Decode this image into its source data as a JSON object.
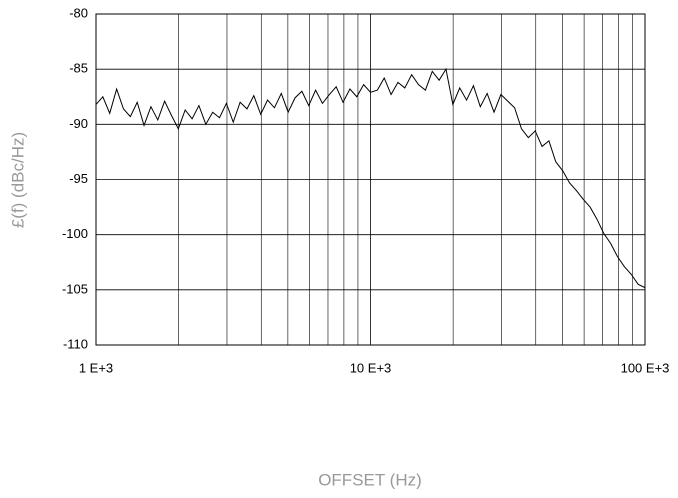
{
  "chart_data": {
    "type": "line",
    "x_label": "OFFSET (Hz)",
    "y_label": "£(f) (dBc/Hz)",
    "x": [
      1000,
      1059,
      1122,
      1189,
      1259,
      1334,
      1413,
      1496,
      1585,
      1679,
      1778,
      1884,
      1995,
      2113,
      2239,
      2371,
      2512,
      2661,
      2818,
      2985,
      3162,
      3350,
      3548,
      3758,
      3981,
      4217,
      4467,
      4732,
      5012,
      5309,
      5623,
      5957,
      6310,
      6683,
      7079,
      7499,
      7943,
      8414,
      8913,
      9441,
      10000,
      10593,
      11220,
      11885,
      12589,
      13335,
      14125,
      14962,
      15849,
      16788,
      17783,
      18836,
      19953,
      21135,
      22387,
      23714,
      25119,
      26607,
      28184,
      29854,
      31623,
      33497,
      35481,
      37584,
      39811,
      42170,
      44668,
      47315,
      50119,
      53088,
      56234,
      59566,
      63096,
      66834,
      70795,
      74989,
      79433,
      84140,
      89125,
      94406,
      100000
    ],
    "values": [
      -88.2,
      -87.5,
      -89.0,
      -86.8,
      -88.6,
      -89.3,
      -88.0,
      -90.1,
      -88.4,
      -89.6,
      -87.9,
      -89.2,
      -90.4,
      -88.7,
      -89.5,
      -88.3,
      -90.0,
      -88.9,
      -89.4,
      -88.1,
      -89.8,
      -88.0,
      -88.6,
      -87.4,
      -89.1,
      -87.8,
      -88.5,
      -87.2,
      -88.9,
      -87.6,
      -87.0,
      -88.3,
      -86.9,
      -88.1,
      -87.3,
      -86.6,
      -88.0,
      -86.8,
      -87.5,
      -86.4,
      -87.1,
      -86.9,
      -85.8,
      -87.3,
      -86.2,
      -86.7,
      -85.5,
      -86.4,
      -86.9,
      -85.2,
      -86.0,
      -85.0,
      -88.2,
      -86.7,
      -87.8,
      -86.5,
      -88.4,
      -87.2,
      -88.9,
      -87.3,
      -87.9,
      -88.5,
      -90.4,
      -91.2,
      -90.6,
      -92.0,
      -91.5,
      -93.4,
      -94.2,
      -95.3,
      -96.0,
      -96.8,
      -97.5,
      -98.6,
      -99.9,
      -100.8,
      -102.0,
      -102.9,
      -103.6,
      -104.5,
      -104.8
    ],
    "color": "#000000",
    "xlim": [
      1000,
      100000
    ],
    "log_x": true,
    "xticks": [
      {
        "value": 1000,
        "label": "1 E+3"
      },
      {
        "value": 10000,
        "label": "10 E+3"
      },
      {
        "value": 100000,
        "label": "100 E+3"
      }
    ],
    "ylim": [
      -110,
      -80
    ],
    "yticks": [
      -110,
      -105,
      -100,
      -95,
      -90,
      -85,
      -80
    ],
    "grid": true
  }
}
